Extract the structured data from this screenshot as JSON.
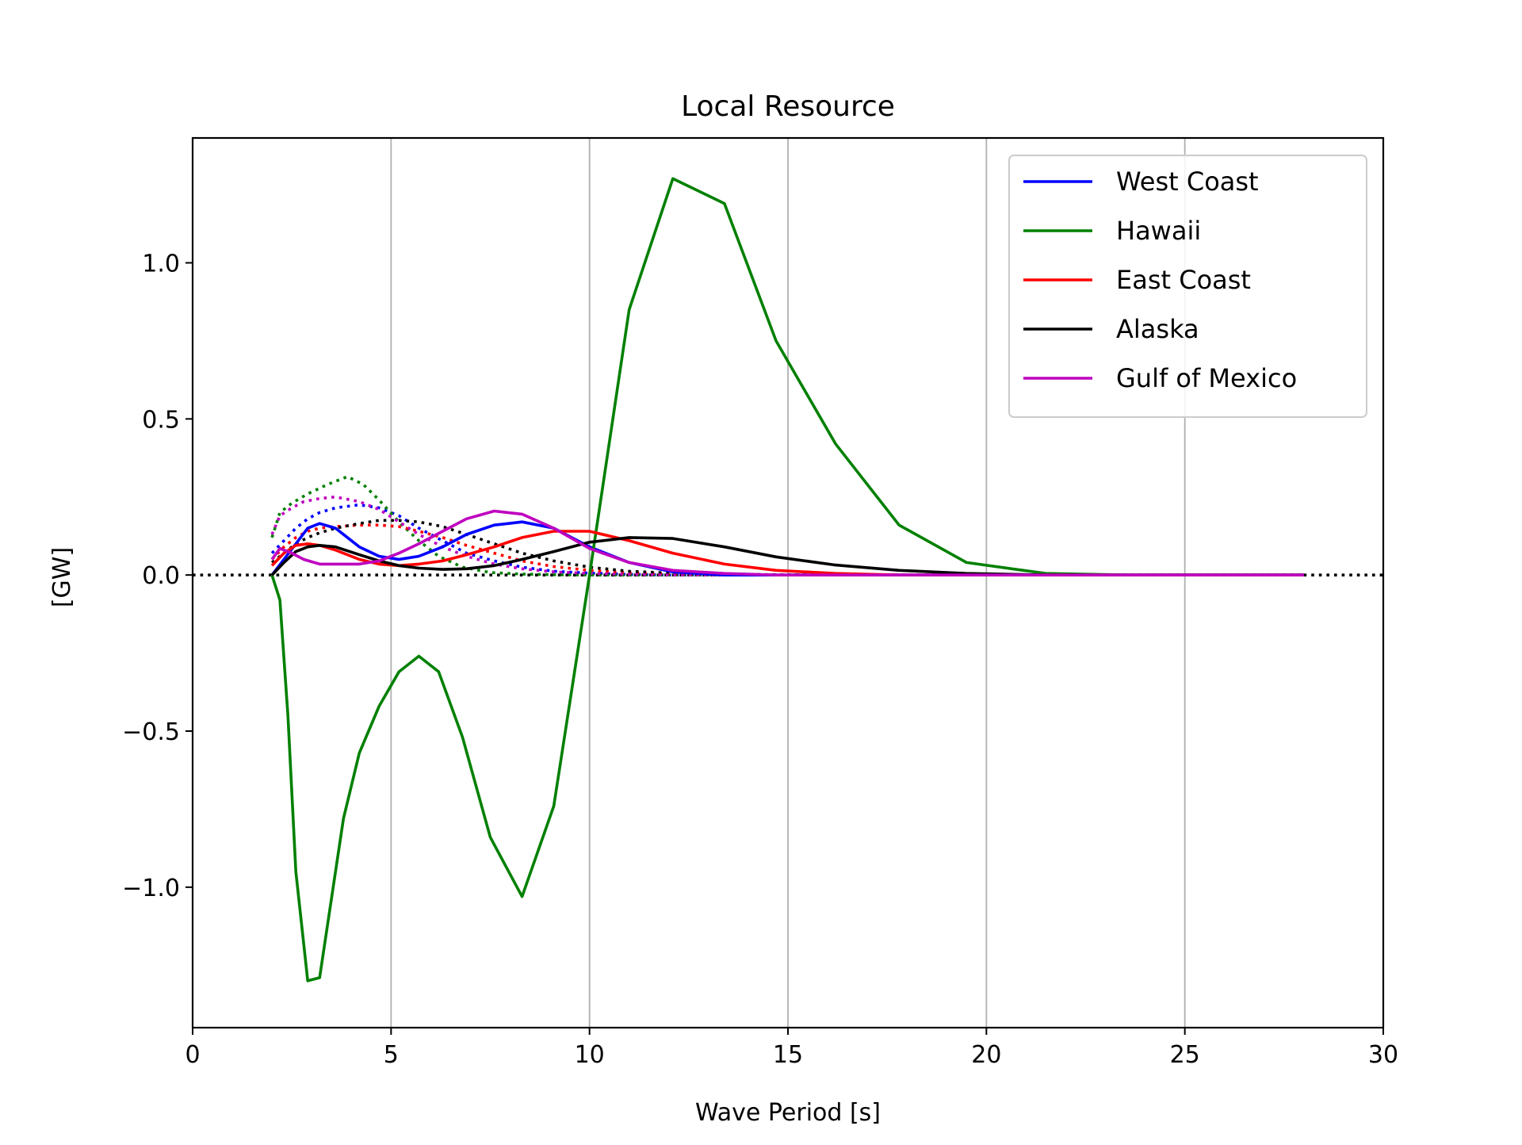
{
  "chart_data": {
    "type": "line",
    "title": "Local Resource",
    "xlabel": "Wave Period [s]",
    "ylabel": "[GW]",
    "xlim": [
      0,
      30
    ],
    "ylim": [
      -1.45,
      1.4
    ],
    "x_ticks": [
      0,
      5,
      10,
      15,
      20,
      25,
      30
    ],
    "x_tick_labels": [
      "0",
      "5",
      "10",
      "15",
      "20",
      "25",
      "30"
    ],
    "y_ticks": [
      -1.0,
      -0.5,
      0.0,
      0.5,
      1.0
    ],
    "y_tick_labels": [
      "−1.0",
      "−0.5",
      "0.0",
      "0.5",
      "1.0"
    ],
    "grid": "vertical",
    "legend_position": "top-right",
    "zero_line": {
      "y": 0,
      "style": "dotted",
      "color": "#000000"
    },
    "series": [
      {
        "name": "West Coast",
        "color": "#0000ff",
        "style": "solid",
        "x": [
          2.0,
          2.3,
          2.6,
          2.9,
          3.2,
          3.6,
          4.2,
          4.7,
          5.2,
          5.7,
          6.3,
          6.9,
          7.6,
          8.3,
          9.1,
          10.0,
          11.0,
          12.1,
          13.4,
          14.7,
          16.2,
          17.8,
          19.5,
          21.5,
          23.6,
          25.9,
          28.0
        ],
        "values": [
          0.0,
          0.05,
          0.1,
          0.15,
          0.165,
          0.15,
          0.09,
          0.06,
          0.05,
          0.06,
          0.09,
          0.13,
          0.16,
          0.17,
          0.15,
          0.09,
          0.04,
          0.01,
          0.0,
          0.0,
          0.0,
          0.0,
          0.0,
          0.0,
          0.0,
          0.0,
          0.0
        ]
      },
      {
        "name": "Hawaii",
        "color": "#008000",
        "style": "solid",
        "x": [
          2.0,
          2.2,
          2.4,
          2.6,
          2.9,
          3.2,
          3.8,
          4.2,
          4.7,
          5.2,
          5.7,
          6.2,
          6.8,
          7.5,
          8.3,
          9.1,
          10.0,
          11.0,
          12.1,
          13.4,
          14.7,
          16.2,
          17.8,
          19.5,
          21.5,
          23.6,
          25.9,
          28.0
        ],
        "values": [
          0.0,
          -0.08,
          -0.45,
          -0.95,
          -1.3,
          -1.29,
          -0.78,
          -0.57,
          -0.42,
          -0.31,
          -0.26,
          -0.31,
          -0.52,
          -0.84,
          -1.03,
          -0.74,
          0.0,
          0.85,
          1.27,
          1.19,
          0.75,
          0.42,
          0.16,
          0.04,
          0.005,
          0.0,
          0.0,
          0.0
        ]
      },
      {
        "name": "East Coast",
        "color": "#ff0000",
        "style": "solid",
        "x": [
          2.0,
          2.3,
          2.6,
          2.9,
          3.2,
          3.6,
          4.2,
          4.7,
          5.2,
          5.7,
          6.3,
          6.9,
          7.6,
          8.3,
          9.1,
          10.0,
          11.0,
          12.1,
          13.4,
          14.7,
          16.2,
          17.8,
          19.5,
          21.5,
          23.6,
          25.9,
          28.0
        ],
        "values": [
          0.03,
          0.07,
          0.095,
          0.1,
          0.095,
          0.08,
          0.05,
          0.035,
          0.03,
          0.035,
          0.045,
          0.065,
          0.09,
          0.12,
          0.14,
          0.14,
          0.11,
          0.07,
          0.035,
          0.015,
          0.005,
          0.0,
          0.0,
          0.0,
          0.0,
          0.0,
          0.0
        ]
      },
      {
        "name": "Alaska",
        "color": "#000000",
        "style": "solid",
        "x": [
          2.0,
          2.3,
          2.6,
          2.9,
          3.2,
          3.6,
          4.2,
          4.7,
          5.2,
          5.7,
          6.3,
          6.9,
          7.6,
          8.3,
          9.1,
          10.0,
          11.0,
          12.1,
          13.4,
          14.7,
          16.2,
          17.8,
          19.5,
          21.5,
          23.6,
          25.9,
          28.0
        ],
        "values": [
          0.0,
          0.04,
          0.075,
          0.09,
          0.095,
          0.09,
          0.065,
          0.045,
          0.03,
          0.022,
          0.018,
          0.02,
          0.03,
          0.05,
          0.075,
          0.105,
          0.12,
          0.117,
          0.09,
          0.058,
          0.032,
          0.015,
          0.005,
          0.0,
          0.0,
          0.0,
          0.0
        ]
      },
      {
        "name": "Gulf of Mexico",
        "color": "#bf00bf",
        "style": "solid",
        "x": [
          2.0,
          2.2,
          2.5,
          2.8,
          3.2,
          3.6,
          4.2,
          4.7,
          5.2,
          5.7,
          6.3,
          6.9,
          7.6,
          8.3,
          9.1,
          10.0,
          11.0,
          12.1,
          13.4,
          14.7,
          16.2,
          17.8,
          19.5,
          21.5,
          23.6,
          25.9,
          28.0
        ],
        "values": [
          0.05,
          0.085,
          0.07,
          0.05,
          0.035,
          0.035,
          0.035,
          0.045,
          0.07,
          0.1,
          0.14,
          0.18,
          0.205,
          0.195,
          0.15,
          0.085,
          0.04,
          0.015,
          0.005,
          0.0,
          0.0,
          0.0,
          0.0,
          0.0,
          0.0,
          0.0,
          0.0
        ]
      },
      {
        "name": "",
        "color": "#0000ff",
        "style": "dotted",
        "x": [
          2.0,
          2.3,
          2.6,
          2.9,
          3.2,
          3.6,
          4.2,
          4.7,
          5.2,
          5.7,
          6.3,
          6.9,
          7.6,
          8.3,
          9.1,
          10.0,
          11.0,
          12.1,
          13.4,
          15.0,
          17.0,
          20.0,
          24.0,
          28.0
        ],
        "values": [
          0.07,
          0.11,
          0.15,
          0.18,
          0.2,
          0.215,
          0.225,
          0.215,
          0.19,
          0.15,
          0.11,
          0.07,
          0.045,
          0.025,
          0.012,
          0.006,
          0.002,
          0.0,
          0.0,
          0.0,
          0.0,
          0.0,
          0.0,
          0.0
        ]
      },
      {
        "name": "",
        "color": "#008000",
        "style": "dotted",
        "x": [
          2.0,
          2.2,
          2.5,
          2.9,
          3.4,
          3.9,
          4.3,
          4.7,
          5.2,
          5.7,
          6.2,
          6.8,
          7.5,
          8.3,
          9.1,
          10.0,
          11.0,
          13.0,
          16.0,
          20.0,
          24.0,
          28.0
        ],
        "values": [
          0.12,
          0.2,
          0.23,
          0.26,
          0.29,
          0.315,
          0.29,
          0.24,
          0.17,
          0.11,
          0.06,
          0.025,
          0.008,
          0.003,
          0.001,
          0.0,
          0.0,
          0.0,
          0.0,
          0.0,
          0.0,
          0.0
        ]
      },
      {
        "name": "",
        "color": "#ff0000",
        "style": "dotted",
        "x": [
          2.0,
          2.3,
          2.6,
          2.9,
          3.2,
          3.6,
          4.2,
          4.7,
          5.2,
          5.7,
          6.3,
          6.9,
          7.6,
          8.3,
          9.1,
          10.0,
          11.0,
          12.1,
          13.4,
          15.0,
          17.0,
          20.0,
          24.0,
          28.0
        ],
        "values": [
          0.05,
          0.09,
          0.12,
          0.14,
          0.15,
          0.155,
          0.16,
          0.16,
          0.155,
          0.14,
          0.12,
          0.095,
          0.07,
          0.045,
          0.027,
          0.015,
          0.007,
          0.003,
          0.001,
          0.0,
          0.0,
          0.0,
          0.0,
          0.0
        ]
      },
      {
        "name": "",
        "color": "#000000",
        "style": "dotted",
        "x": [
          2.0,
          2.3,
          2.6,
          2.9,
          3.2,
          3.6,
          4.2,
          4.7,
          5.2,
          5.7,
          6.3,
          6.9,
          7.6,
          8.3,
          9.1,
          10.0,
          11.0,
          12.1,
          13.4,
          15.0,
          17.0,
          20.0,
          24.0,
          28.0
        ],
        "values": [
          0.04,
          0.07,
          0.1,
          0.12,
          0.135,
          0.15,
          0.165,
          0.175,
          0.175,
          0.17,
          0.155,
          0.13,
          0.1,
          0.07,
          0.045,
          0.025,
          0.012,
          0.006,
          0.002,
          0.001,
          0.0,
          0.0,
          0.0,
          0.0
        ]
      },
      {
        "name": "",
        "color": "#bf00bf",
        "style": "dotted",
        "x": [
          2.0,
          2.2,
          2.5,
          2.8,
          3.2,
          3.6,
          4.2,
          4.7,
          5.2,
          5.7,
          6.3,
          6.9,
          7.6,
          8.3,
          9.1,
          10.0,
          11.0,
          12.1,
          13.4,
          15.0,
          17.0,
          20.0,
          24.0,
          28.0
        ],
        "values": [
          0.13,
          0.19,
          0.215,
          0.235,
          0.245,
          0.25,
          0.235,
          0.21,
          0.17,
          0.13,
          0.09,
          0.06,
          0.035,
          0.02,
          0.01,
          0.005,
          0.002,
          0.0,
          0.0,
          0.0,
          0.0,
          0.0,
          0.0,
          0.0
        ]
      }
    ]
  }
}
